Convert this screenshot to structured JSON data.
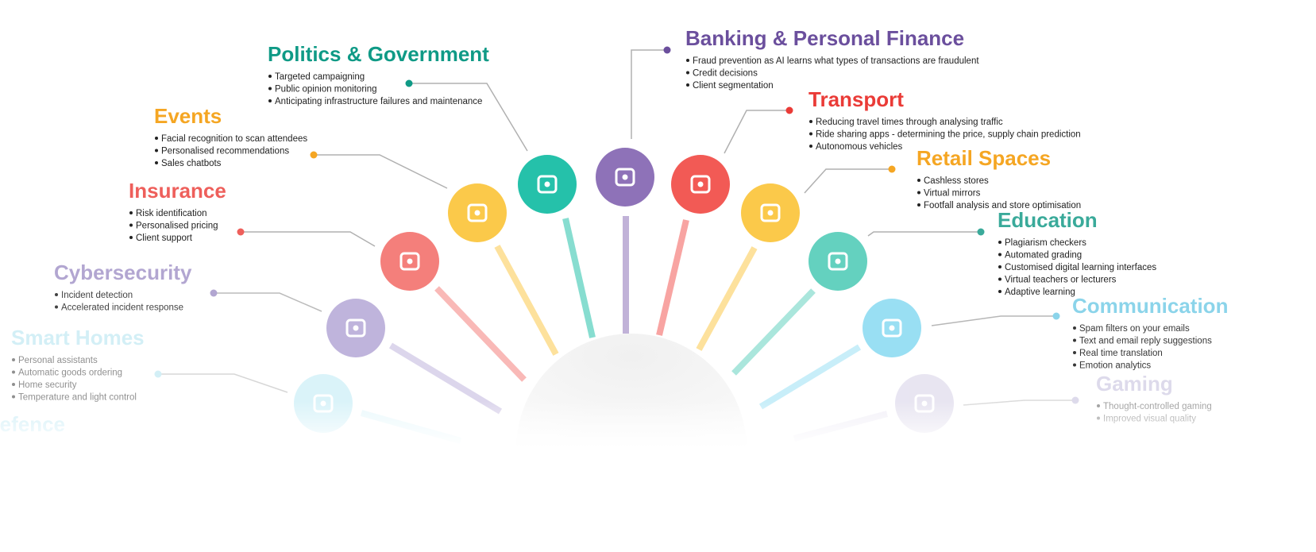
{
  "items": [
    {
      "title": "Smart Homes",
      "bullets": [
        "Personal assistants",
        "Automatic goods ordering",
        "Home security",
        "Temperature and light control"
      ]
    },
    {
      "title": "Cybersecurity",
      "bullets": [
        "Incident detection",
        "Accelerated incident response"
      ]
    },
    {
      "title": "Insurance",
      "bullets": [
        "Risk identification",
        "Personalised pricing",
        "Client support"
      ]
    },
    {
      "title": "Events",
      "bullets": [
        "Facial recognition to scan attendees",
        "Personalised recommendations",
        "Sales chatbots"
      ]
    },
    {
      "title": "Politics & Government",
      "bullets": [
        "Targeted campaigning",
        "Public opinion monitoring",
        "Anticipating infrastructure failures and maintenance"
      ]
    },
    {
      "title": "Banking & Personal Finance",
      "bullets": [
        "Fraud prevention as AI learns what types of transactions are fraudulent",
        "Credit decisions",
        "Client segmentation"
      ]
    },
    {
      "title": "Transport",
      "bullets": [
        "Reducing travel times through analysing traffic",
        "Ride sharing apps - determining the price, supply chain prediction",
        "Autonomous vehicles"
      ]
    },
    {
      "title": "Retail Spaces",
      "bullets": [
        "Cashless stores",
        "Virtual mirrors",
        "Footfall analysis and store optimisation"
      ]
    },
    {
      "title": "Education",
      "bullets": [
        "Plagiarism checkers",
        "Automated grading",
        "Customised digital learning interfaces",
        "Virtual teachers or lecturers",
        "Adaptive learning"
      ]
    },
    {
      "title": "Communication",
      "bullets": [
        "Spam filters on your emails",
        "Text and email reply suggestions",
        "Real time translation",
        "Emotion analytics"
      ]
    },
    {
      "title": "Gaming",
      "bullets": [
        "Thought-controlled gaming",
        "Improved visual quality"
      ]
    },
    {
      "title": "Defence",
      "bullets": []
    }
  ]
}
